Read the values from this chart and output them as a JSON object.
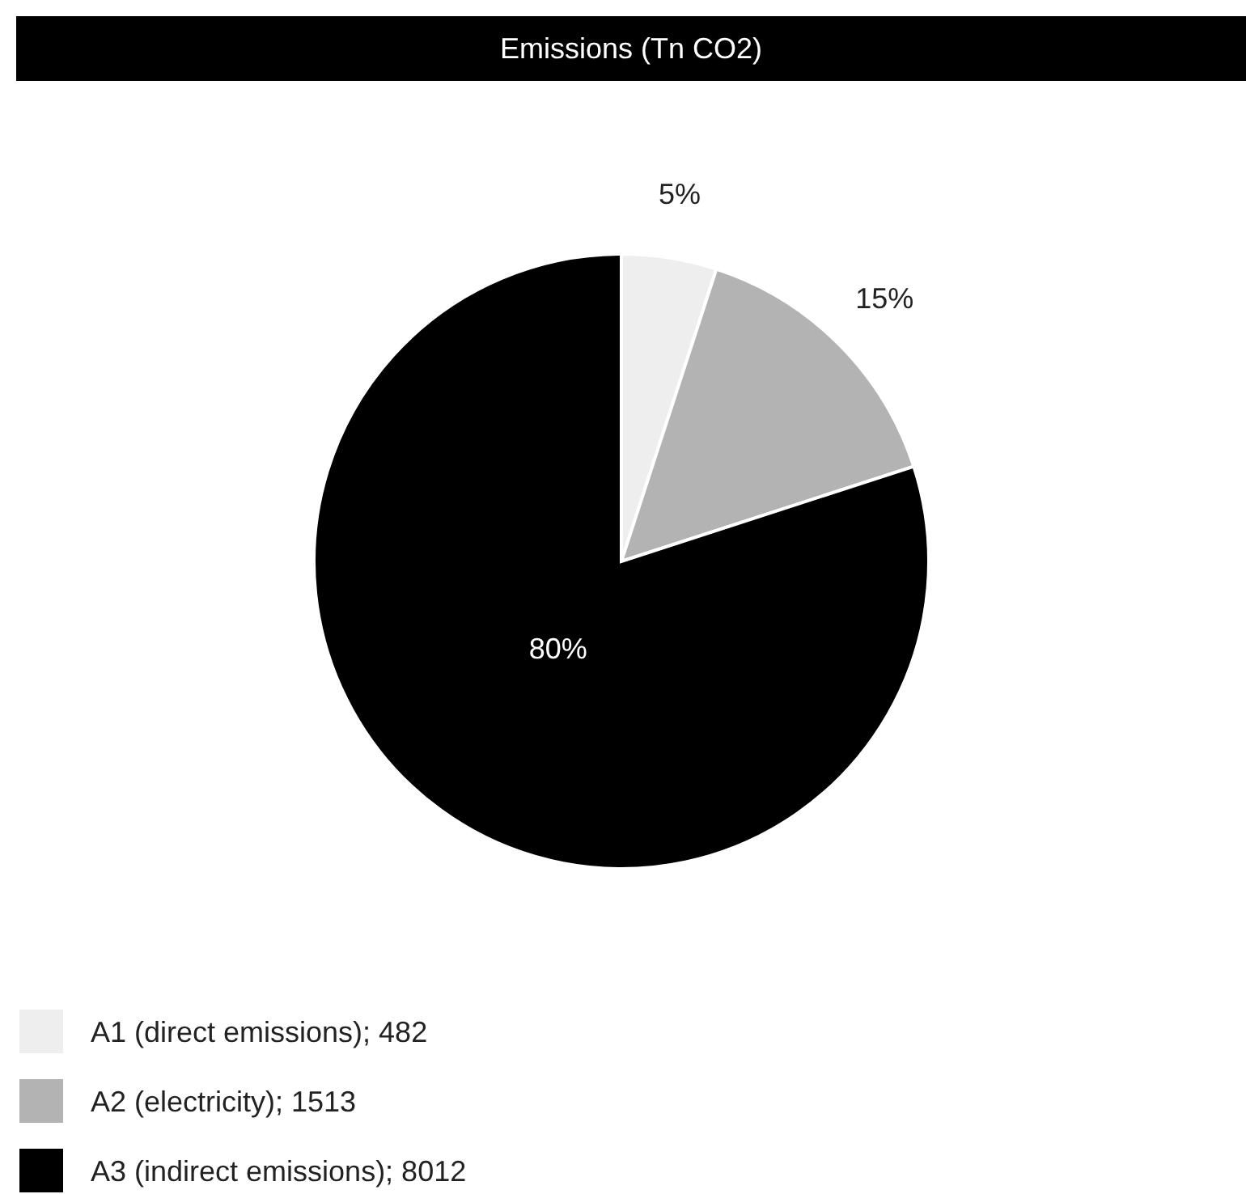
{
  "chart_data": {
    "type": "pie",
    "title": "Emissions (Tn CO2)",
    "categories": [
      "A1 (direct emissions); 482",
      "A2 (electricity); 1513",
      "A3 (indirect emissions); 8012"
    ],
    "values": [
      5,
      15,
      80
    ],
    "colors": [
      "#eeeeee",
      "#b3b3b3",
      "#000000"
    ],
    "value_labels": [
      "5%",
      "15%",
      "80%"
    ],
    "legend": "bottom left"
  }
}
